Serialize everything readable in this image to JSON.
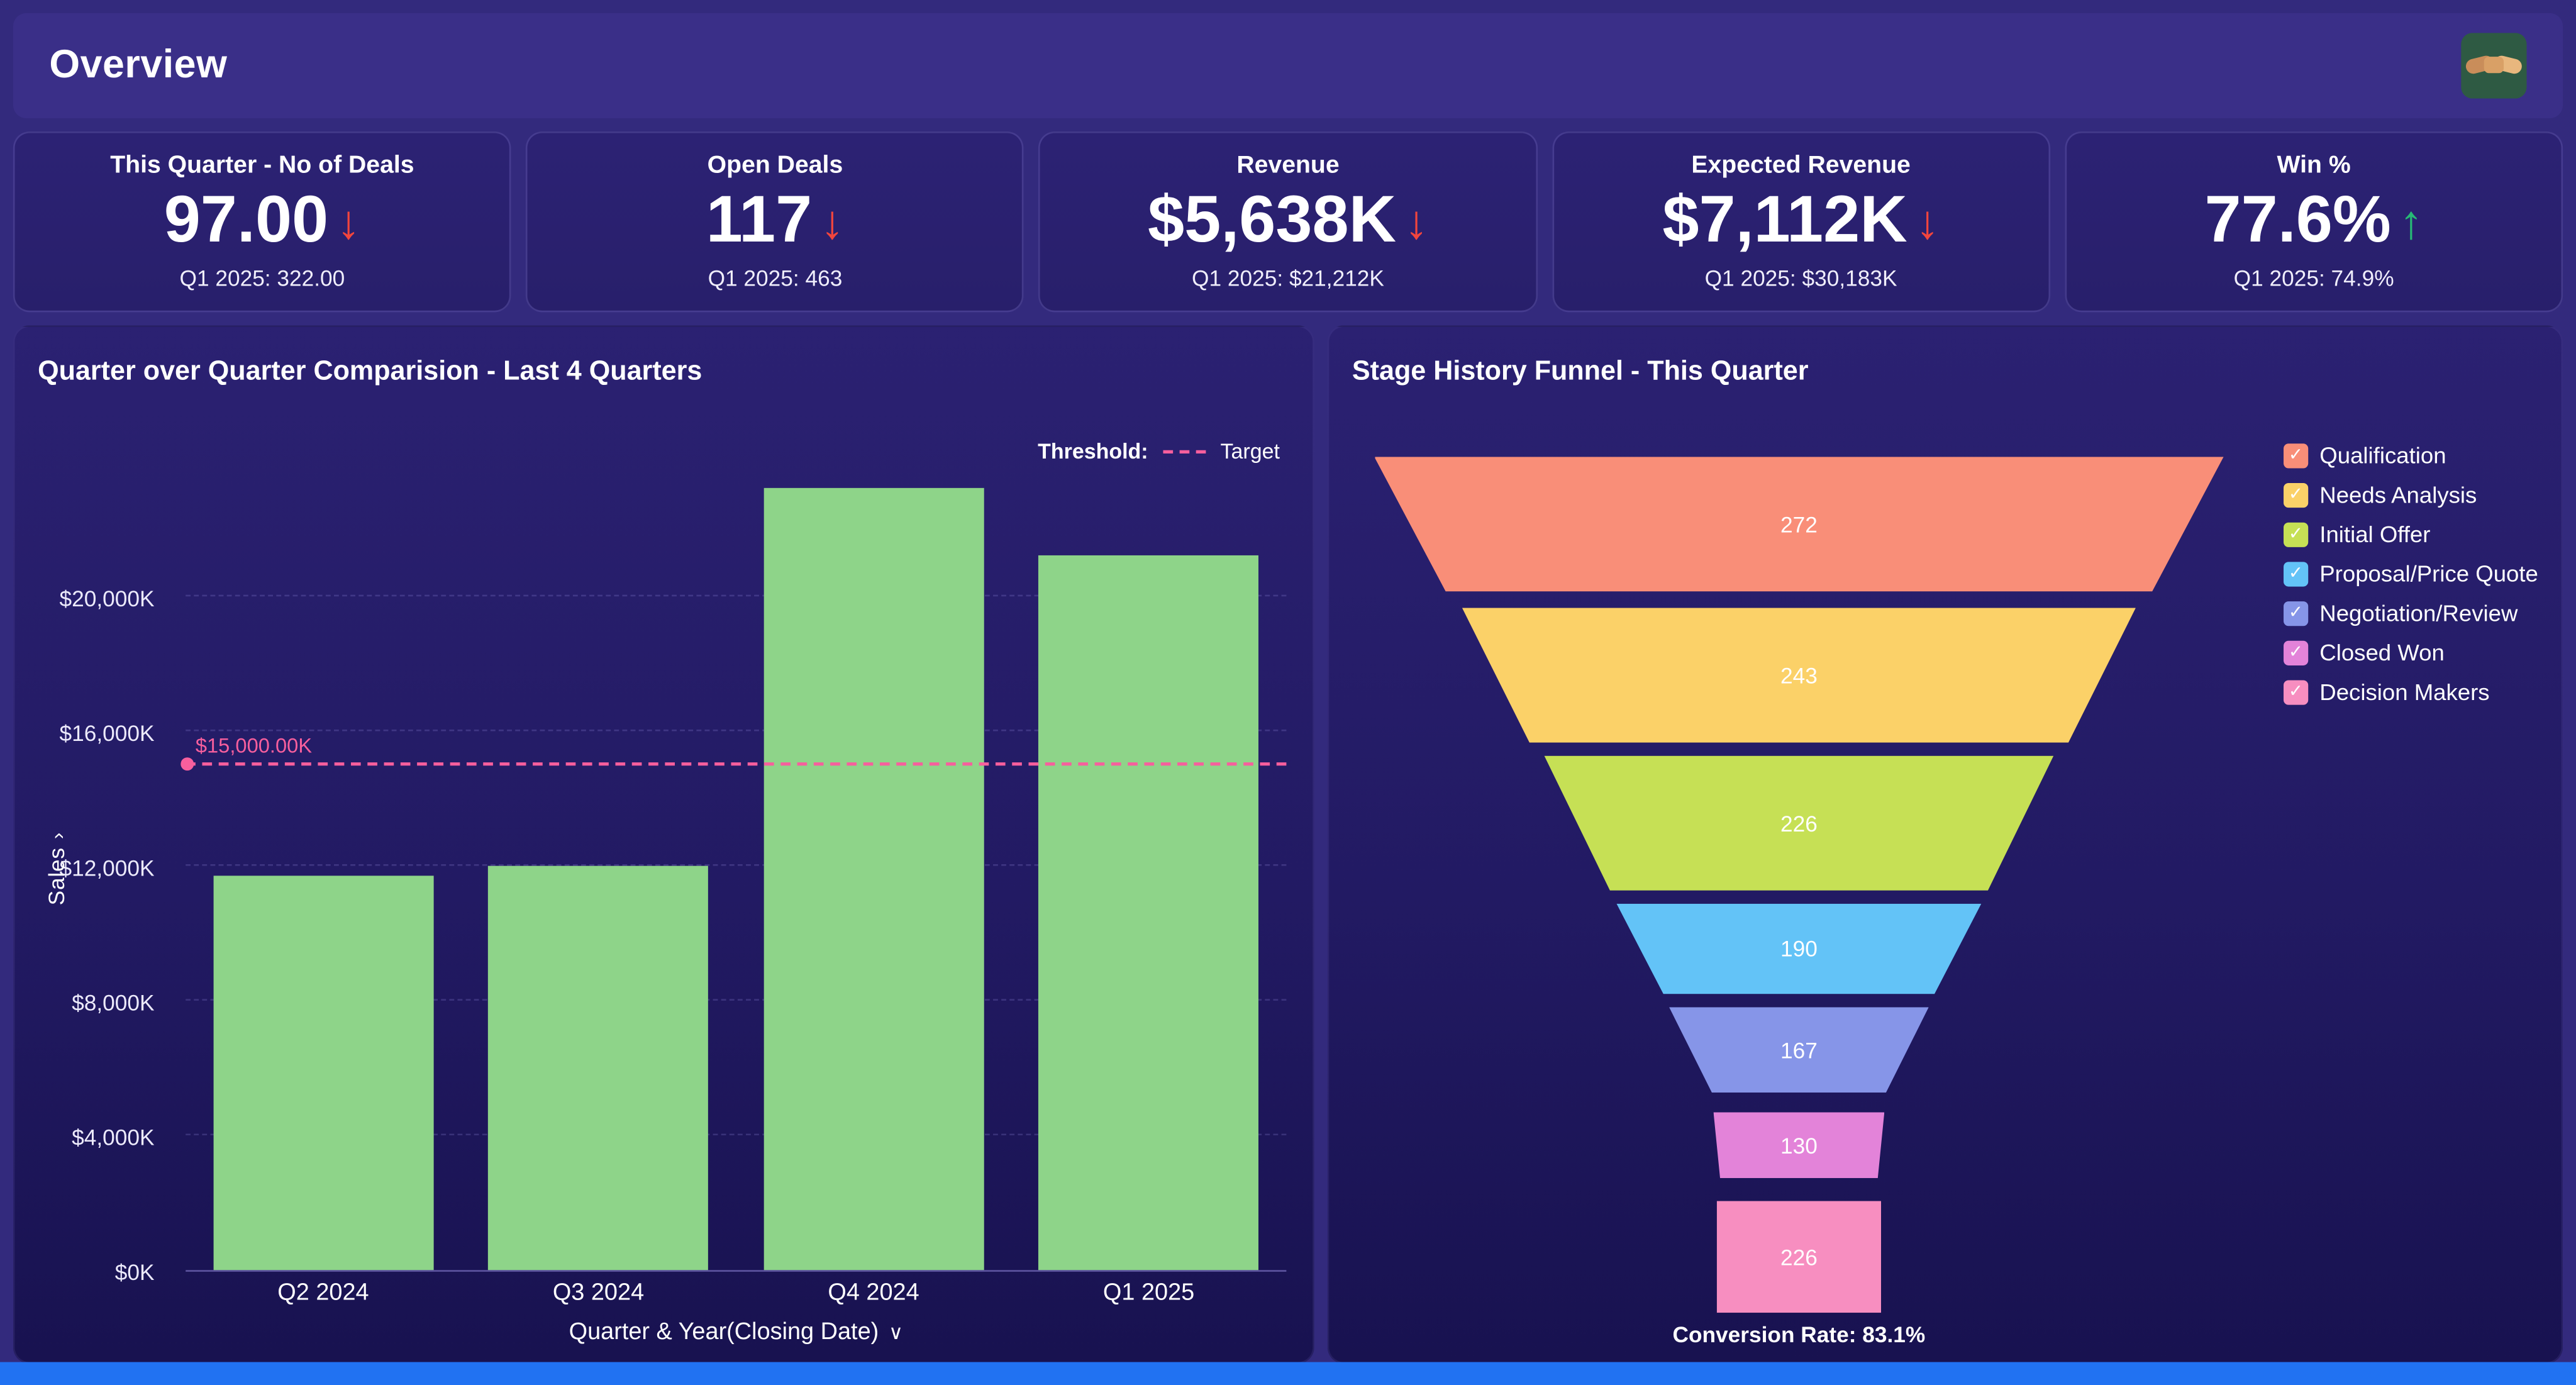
{
  "header": {
    "title": "Overview"
  },
  "kpis": [
    {
      "label": "This Quarter - No of Deals",
      "value": "97.00",
      "trend": "down",
      "sub": "Q1 2025: 322.00"
    },
    {
      "label": "Open Deals",
      "value": "117",
      "trend": "down",
      "sub": "Q1 2025: 463"
    },
    {
      "label": "Revenue",
      "value": "$5,638K",
      "trend": "down",
      "sub": "Q1 2025: $21,212K"
    },
    {
      "label": "Expected Revenue",
      "value": "$7,112K",
      "trend": "down",
      "sub": "Q1 2025: $30,183K"
    },
    {
      "label": "Win %",
      "value": "77.6%",
      "trend": "up",
      "sub": "Q1 2025: 74.9%"
    }
  ],
  "chart_data": [
    {
      "type": "bar",
      "title": "Quarter over Quarter Comparision - Last 4 Quarters",
      "categories": [
        "Q2 2024",
        "Q3 2024",
        "Q4 2024",
        "Q1 2025"
      ],
      "values": [
        11700,
        12000,
        23200,
        21212
      ],
      "unit": "$K",
      "xlabel": "Quarter & Year(Closing Date)",
      "ylabel": "Sales",
      "ylim": [
        0,
        24000
      ],
      "yticks": [
        0,
        4000,
        8000,
        12000,
        16000,
        20000
      ],
      "ytick_labels": [
        "$0K",
        "$4,000K",
        "$8,000K",
        "$12,000K",
        "$16,000K",
        "$20,000K"
      ],
      "bar_color": "#8ed489",
      "grid": "dashed horizontal",
      "threshold": {
        "label_prefix": "Threshold:",
        "legend": "Target",
        "value": 15000,
        "value_label": "$15,000.00K",
        "color": "#f75f9d"
      }
    },
    {
      "type": "funnel",
      "title": "Stage History Funnel - This Quarter",
      "stages": [
        {
          "label": "Qualification",
          "value": 272,
          "color": "#f98e78"
        },
        {
          "label": "Needs Analysis",
          "value": 243,
          "color": "#fbd168"
        },
        {
          "label": "Initial Offer",
          "value": 226,
          "color": "#c6e055"
        },
        {
          "label": "Proposal/Price Quote",
          "value": 190,
          "color": "#63c3f7"
        },
        {
          "label": "Negotiation/Review",
          "value": 167,
          "color": "#8695e8"
        },
        {
          "label": "Closed Won",
          "value": 130,
          "color": "#e383d9"
        },
        {
          "label": "Decision Makers",
          "value": 226,
          "color": "#f78ec0"
        }
      ],
      "legend_position": "right",
      "conversion_rate": "Conversion Rate: 83.1%"
    }
  ]
}
